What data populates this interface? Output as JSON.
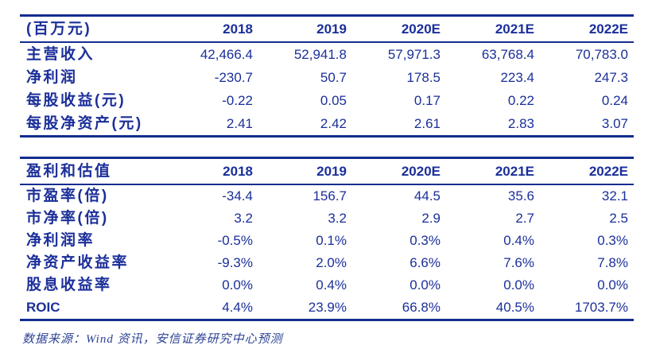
{
  "colors": {
    "text_navy": "#1b2f9a",
    "border_navy": "#142d8f",
    "source_note_blue": "#2e4396",
    "background": "#ffffff"
  },
  "income_table": {
    "header": [
      "(百万元)",
      "2018",
      "2019",
      "2020E",
      "2021E",
      "2022E"
    ],
    "rows": [
      {
        "label": "主营收入",
        "values": [
          "42,466.4",
          "52,941.8",
          "57,971.3",
          "63,768.4",
          "70,783.0"
        ]
      },
      {
        "label": "净利润",
        "values": [
          "-230.7",
          "50.7",
          "178.5",
          "223.4",
          "247.3"
        ]
      },
      {
        "label": "每股收益(元)",
        "values": [
          "-0.22",
          "0.05",
          "0.17",
          "0.22",
          "0.24"
        ]
      },
      {
        "label": "每股净资产(元)",
        "values": [
          "2.41",
          "2.42",
          "2.61",
          "2.83",
          "3.07"
        ]
      }
    ]
  },
  "valuation_table": {
    "header": [
      "盈利和估值",
      "2018",
      "2019",
      "2020E",
      "2021E",
      "2022E"
    ],
    "rows": [
      {
        "label": "市盈率(倍)",
        "values": [
          "-34.4",
          "156.7",
          "44.5",
          "35.6",
          "32.1"
        ]
      },
      {
        "label": "市净率(倍)",
        "values": [
          "3.2",
          "3.2",
          "2.9",
          "2.7",
          "2.5"
        ]
      },
      {
        "label": "净利润率",
        "values": [
          "-0.5%",
          "0.1%",
          "0.3%",
          "0.4%",
          "0.3%"
        ]
      },
      {
        "label": "净资产收益率",
        "values": [
          "-9.3%",
          "2.0%",
          "6.6%",
          "7.6%",
          "7.8%"
        ]
      },
      {
        "label": "股息收益率",
        "values": [
          "0.0%",
          "0.4%",
          "0.0%",
          "0.0%",
          "0.0%"
        ]
      },
      {
        "label": "ROIC",
        "values": [
          "4.4%",
          "23.9%",
          "66.8%",
          "40.5%",
          "1703.7%"
        ]
      }
    ]
  },
  "footer": {
    "source_note": "数据来源：Wind 资讯，安信证券研究中心预测"
  }
}
